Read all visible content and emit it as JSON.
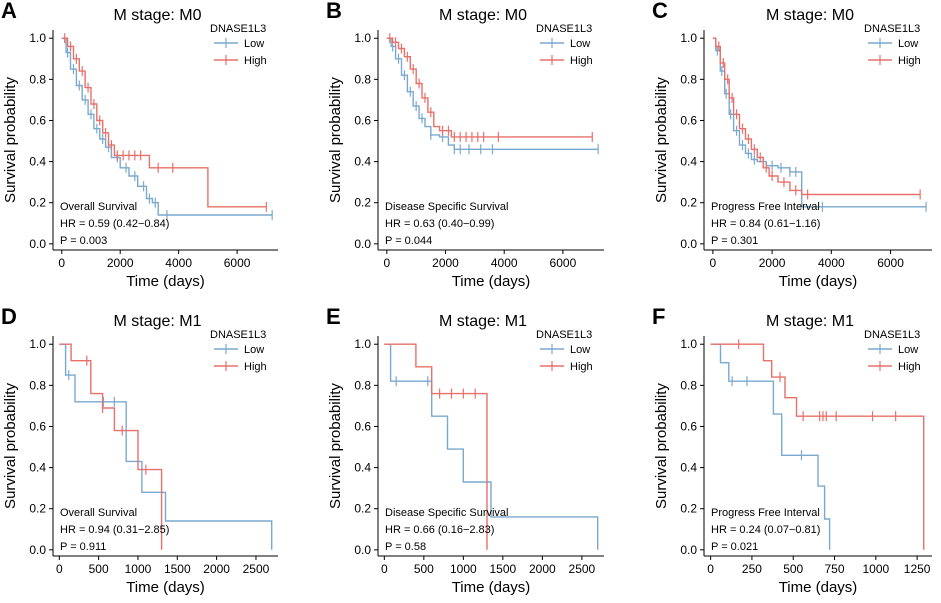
{
  "chart_data": [
    {
      "panel": "A",
      "type": "line",
      "title": "M stage: M0",
      "xlabel": "Time (days)",
      "ylabel": "Survival probability",
      "xlim": [
        -300,
        7400
      ],
      "ylim": [
        -0.03,
        1.04
      ],
      "xticks": [
        0,
        2000,
        4000,
        6000
      ],
      "yticks": [
        0.0,
        0.2,
        0.4,
        0.6,
        0.8,
        1.0
      ],
      "legend_title": "DNASE1L3",
      "legend_position": "top-right",
      "annotation": [
        "Overall Survival",
        "HR = 0.59 (0.42−0.84)",
        "P = 0.003"
      ],
      "series": [
        {
          "name": "Low",
          "color": "#7aa9cf",
          "x": [
            0,
            150,
            300,
            500,
            700,
            900,
            1100,
            1300,
            1500,
            1700,
            2000,
            2300,
            2600,
            2900,
            3100,
            3300,
            3600,
            7200
          ],
          "y": [
            1.0,
            0.93,
            0.85,
            0.77,
            0.7,
            0.63,
            0.56,
            0.51,
            0.47,
            0.42,
            0.37,
            0.33,
            0.28,
            0.22,
            0.2,
            0.14,
            0.14,
            0.14
          ],
          "censor_x": [
            200,
            400,
            600,
            800,
            1000,
            1200,
            1400,
            1600,
            1900,
            2200,
            2500,
            2800,
            3000,
            3200,
            3600,
            7200
          ]
        },
        {
          "name": "High",
          "color": "#e8706a",
          "x": [
            0,
            200,
            400,
            600,
            800,
            1000,
            1200,
            1400,
            1600,
            1800,
            2200,
            2600,
            3000,
            3500,
            4000,
            5000,
            7000
          ],
          "y": [
            1.0,
            0.96,
            0.9,
            0.84,
            0.76,
            0.68,
            0.6,
            0.54,
            0.48,
            0.43,
            0.43,
            0.43,
            0.37,
            0.37,
            0.37,
            0.18,
            0.18
          ],
          "censor_x": [
            100,
            300,
            500,
            700,
            900,
            1100,
            1300,
            1500,
            1700,
            1900,
            2100,
            2300,
            2500,
            2700,
            3300,
            3800,
            7000
          ]
        }
      ]
    },
    {
      "panel": "B",
      "type": "line",
      "title": "M stage: M0",
      "xlabel": "Time (days)",
      "ylabel": "Survival probability",
      "xlim": [
        -300,
        7400
      ],
      "ylim": [
        -0.03,
        1.04
      ],
      "xticks": [
        0,
        2000,
        4000,
        6000
      ],
      "yticks": [
        0.0,
        0.2,
        0.4,
        0.6,
        0.8,
        1.0
      ],
      "legend_title": "DNASE1L3",
      "legend_position": "top-right",
      "annotation": [
        "Disease Specific Survival",
        "HR = 0.63 (0.40−0.99)",
        "P = 0.044"
      ],
      "series": [
        {
          "name": "Low",
          "color": "#7aa9cf",
          "x": [
            0,
            150,
            300,
            500,
            700,
            900,
            1100,
            1300,
            1500,
            1800,
            2100,
            2300,
            7200
          ],
          "y": [
            1.0,
            0.96,
            0.9,
            0.82,
            0.74,
            0.67,
            0.61,
            0.57,
            0.53,
            0.52,
            0.48,
            0.46,
            0.46
          ],
          "censor_x": [
            200,
            400,
            600,
            800,
            1000,
            1200,
            1500,
            1900,
            2300,
            2500,
            2800,
            3200,
            3600,
            7200
          ]
        },
        {
          "name": "High",
          "color": "#e8706a",
          "x": [
            0,
            200,
            400,
            600,
            800,
            1000,
            1200,
            1400,
            1600,
            1800,
            2200,
            7000
          ],
          "y": [
            1.0,
            0.98,
            0.95,
            0.91,
            0.85,
            0.78,
            0.71,
            0.64,
            0.57,
            0.55,
            0.52,
            0.52
          ],
          "censor_x": [
            100,
            300,
            500,
            700,
            900,
            1100,
            1300,
            1500,
            1900,
            2100,
            2300,
            2500,
            2700,
            2900,
            3100,
            3300,
            3800,
            7000
          ]
        }
      ]
    },
    {
      "panel": "C",
      "type": "line",
      "title": "M stage: M0",
      "xlabel": "Time (days)",
      "ylabel": "Survival probability",
      "xlim": [
        -300,
        7400
      ],
      "ylim": [
        -0.03,
        1.04
      ],
      "xticks": [
        0,
        2000,
        4000,
        6000
      ],
      "yticks": [
        0.0,
        0.2,
        0.4,
        0.6,
        0.8,
        1.0
      ],
      "legend_title": "DNASE1L3",
      "legend_position": "top-right",
      "annotation": [
        "Progress Free Interval",
        "HR = 0.84 (0.61−1.16)",
        "P = 0.301"
      ],
      "series": [
        {
          "name": "Low",
          "color": "#7aa9cf",
          "x": [
            0,
            100,
            250,
            400,
            550,
            700,
            900,
            1100,
            1300,
            1500,
            1800,
            2200,
            2600,
            3000,
            3600,
            7200
          ],
          "y": [
            1.0,
            0.94,
            0.84,
            0.73,
            0.63,
            0.55,
            0.48,
            0.44,
            0.41,
            0.4,
            0.38,
            0.37,
            0.35,
            0.18,
            0.18,
            0.18
          ],
          "censor_x": [
            150,
            300,
            450,
            600,
            800,
            1000,
            1200,
            1400,
            1700,
            2000,
            2300,
            2600,
            2800,
            3700,
            7200
          ]
        },
        {
          "name": "High",
          "color": "#e8706a",
          "x": [
            0,
            100,
            250,
            400,
            550,
            700,
            900,
            1100,
            1300,
            1500,
            1700,
            1900,
            2200,
            2600,
            3000,
            3400,
            4000,
            7000
          ],
          "y": [
            1.0,
            0.96,
            0.88,
            0.8,
            0.71,
            0.63,
            0.56,
            0.51,
            0.46,
            0.42,
            0.37,
            0.33,
            0.3,
            0.26,
            0.24,
            0.24,
            0.24,
            0.24
          ],
          "censor_x": [
            200,
            350,
            500,
            650,
            800,
            1000,
            1200,
            1400,
            1600,
            1800,
            2000,
            2400,
            2800,
            3200,
            7000
          ]
        }
      ]
    },
    {
      "panel": "D",
      "type": "line",
      "title": "M stage: M1",
      "xlabel": "Time (days)",
      "ylabel": "Survival probability",
      "xlim": [
        -80,
        2780
      ],
      "ylim": [
        -0.03,
        1.04
      ],
      "xticks": [
        0,
        500,
        1000,
        1500,
        2000,
        2500
      ],
      "yticks": [
        0.0,
        0.2,
        0.4,
        0.6,
        0.8,
        1.0
      ],
      "legend_title": "DNASE1L3",
      "legend_position": "top-right",
      "annotation": [
        "Overall Survival",
        "HR = 0.94 (0.31−2.85)",
        "P = 0.911"
      ],
      "series": [
        {
          "name": "Low",
          "color": "#7aa9cf",
          "x": [
            0,
            80,
            200,
            600,
            850,
            1050,
            1350,
            2700
          ],
          "y": [
            1.0,
            0.85,
            0.72,
            0.72,
            0.43,
            0.28,
            0.14,
            0.0
          ],
          "censor_x": [
            120,
            560,
            700
          ]
        },
        {
          "name": "High",
          "color": "#e8706a",
          "x": [
            0,
            150,
            400,
            550,
            700,
            1000,
            1300
          ],
          "y": [
            1.0,
            0.92,
            0.76,
            0.69,
            0.58,
            0.39,
            0.0
          ],
          "censor_x": [
            350,
            550,
            800,
            1100
          ]
        }
      ]
    },
    {
      "panel": "E",
      "type": "line",
      "title": "M stage: M1",
      "xlabel": "Time (days)",
      "ylabel": "Survival probability",
      "xlim": [
        -80,
        2780
      ],
      "ylim": [
        -0.03,
        1.04
      ],
      "xticks": [
        0,
        500,
        1000,
        1500,
        2000,
        2500
      ],
      "yticks": [
        0.0,
        0.2,
        0.4,
        0.6,
        0.8,
        1.0
      ],
      "legend_title": "DNASE1L3",
      "legend_position": "top-right",
      "annotation": [
        "Disease Specific Survival",
        "HR = 0.66 (0.16−2.83)",
        "P = 0.58"
      ],
      "series": [
        {
          "name": "Low",
          "color": "#7aa9cf",
          "x": [
            0,
            80,
            600,
            800,
            1000,
            1350,
            2700
          ],
          "y": [
            1.0,
            0.82,
            0.65,
            0.49,
            0.33,
            0.16,
            0.0
          ],
          "censor_x": [
            150,
            550
          ]
        },
        {
          "name": "High",
          "color": "#e8706a",
          "x": [
            0,
            400,
            600,
            1300
          ],
          "y": [
            1.0,
            0.89,
            0.76,
            0.0
          ],
          "censor_x": [
            700,
            850,
            1000,
            1150
          ]
        }
      ]
    },
    {
      "panel": "F",
      "type": "line",
      "title": "M stage: M1",
      "xlabel": "Time (days)",
      "ylabel": "Survival probability",
      "xlim": [
        -40,
        1340
      ],
      "ylim": [
        -0.03,
        1.04
      ],
      "xticks": [
        0,
        250,
        500,
        750,
        1000,
        1250
      ],
      "yticks": [
        0.0,
        0.2,
        0.4,
        0.6,
        0.8,
        1.0
      ],
      "legend_title": "DNASE1L3",
      "legend_position": "top-right",
      "annotation": [
        "Progress Free Interval",
        "HR = 0.24 (0.07−0.81)",
        "P = 0.021"
      ],
      "series": [
        {
          "name": "Low",
          "color": "#7aa9cf",
          "x": [
            0,
            60,
            110,
            380,
            430,
            650,
            690,
            720
          ],
          "y": [
            1.0,
            0.91,
            0.82,
            0.66,
            0.46,
            0.31,
            0.15,
            0.0
          ],
          "censor_x": [
            130,
            220,
            550
          ]
        },
        {
          "name": "High",
          "color": "#e8706a",
          "x": [
            0,
            320,
            370,
            450,
            520,
            1290
          ],
          "y": [
            1.0,
            0.92,
            0.84,
            0.74,
            0.65,
            0.0
          ],
          "censor_x": [
            170,
            420,
            560,
            660,
            680,
            700,
            760,
            980,
            1120
          ]
        }
      ]
    }
  ]
}
